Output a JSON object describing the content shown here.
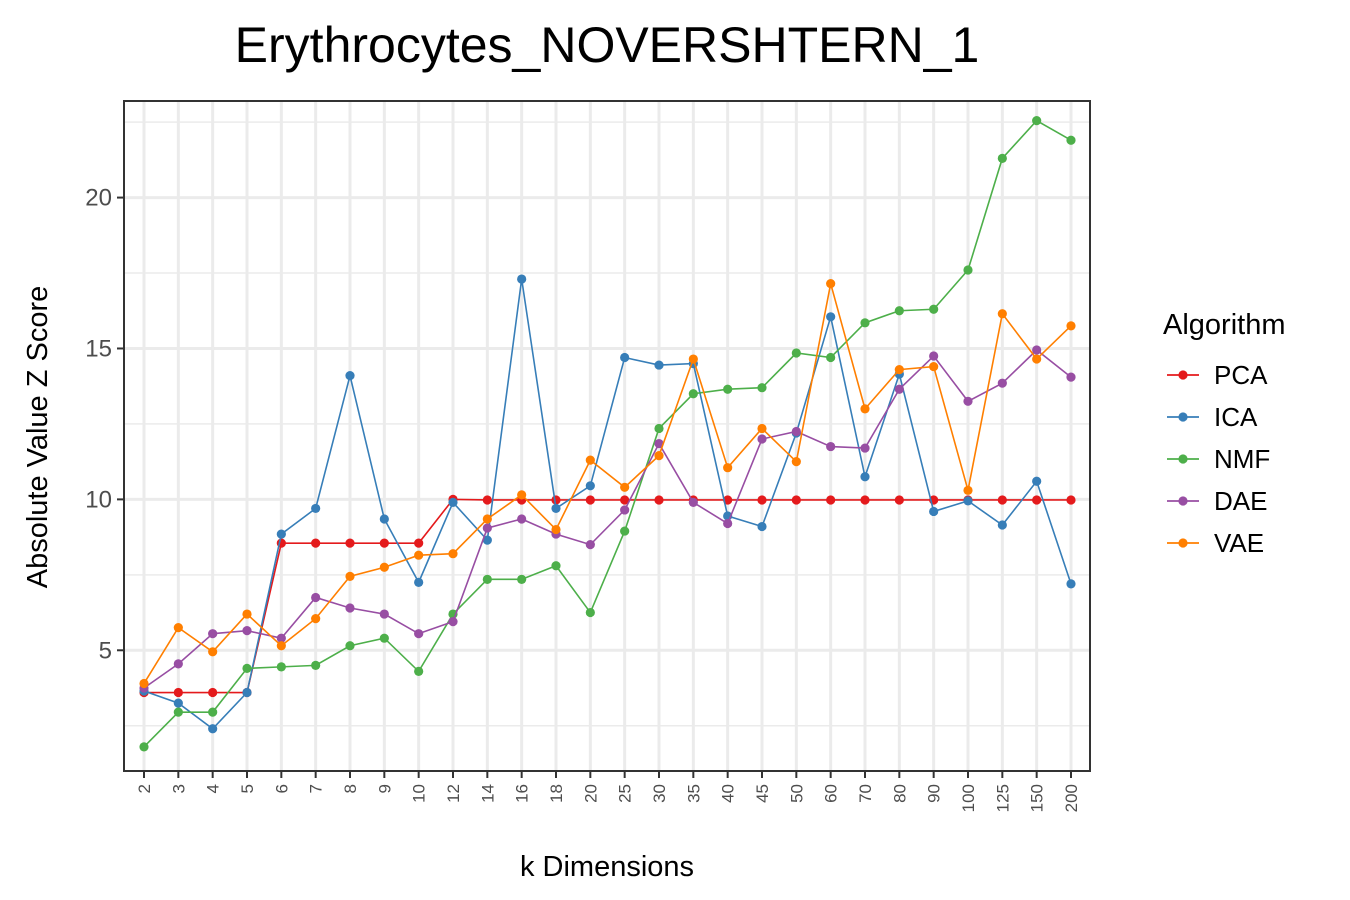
{
  "chart_data": {
    "type": "line",
    "title": "Erythrocytes_NOVERSHTERN_1",
    "xlabel": "k Dimensions",
    "ylabel": "Absolute Value Z Score",
    "categories": [
      "2",
      "3",
      "4",
      "5",
      "6",
      "7",
      "8",
      "9",
      "10",
      "12",
      "14",
      "16",
      "18",
      "20",
      "25",
      "30",
      "35",
      "40",
      "45",
      "50",
      "60",
      "70",
      "80",
      "90",
      "100",
      "125",
      "150",
      "200"
    ],
    "yticks": [
      5,
      10,
      15,
      20
    ],
    "ylim": [
      1.0,
      23.2
    ],
    "grid": true,
    "legend": {
      "title": "Algorithm",
      "placement": "right"
    },
    "series": [
      {
        "name": "PCA",
        "color": "#E41A1C",
        "values": [
          3.6,
          3.6,
          3.6,
          3.6,
          8.55,
          8.55,
          8.55,
          8.55,
          8.55,
          10.0,
          9.98,
          9.98,
          9.98,
          9.98,
          9.98,
          9.98,
          9.98,
          9.98,
          9.98,
          9.98,
          9.98,
          9.98,
          9.98,
          9.98,
          9.98,
          9.98,
          9.98,
          9.98
        ]
      },
      {
        "name": "ICA",
        "color": "#377EB8",
        "values": [
          3.65,
          3.25,
          2.4,
          3.6,
          8.85,
          9.7,
          14.1,
          9.35,
          7.25,
          9.9,
          8.65,
          17.3,
          9.7,
          10.45,
          14.7,
          14.45,
          14.5,
          9.45,
          9.1,
          12.2,
          16.05,
          10.75,
          14.15,
          9.6,
          9.95,
          9.15,
          10.6,
          7.2
        ]
      },
      {
        "name": "NMF",
        "color": "#4DAF4A",
        "values": [
          1.8,
          2.95,
          2.95,
          4.4,
          4.45,
          4.5,
          5.15,
          5.4,
          4.3,
          6.2,
          7.35,
          7.35,
          7.8,
          6.25,
          8.95,
          12.35,
          13.5,
          13.65,
          13.7,
          14.85,
          14.7,
          15.85,
          16.25,
          16.3,
          17.6,
          21.3,
          22.55,
          21.9
        ]
      },
      {
        "name": "DAE",
        "color": "#984EA3",
        "values": [
          3.75,
          4.55,
          5.55,
          5.65,
          5.4,
          6.75,
          6.4,
          6.2,
          5.55,
          5.95,
          9.05,
          9.35,
          8.85,
          8.5,
          9.65,
          11.85,
          9.9,
          9.2,
          12.0,
          12.25,
          11.75,
          11.7,
          13.65,
          14.75,
          13.25,
          13.85,
          14.95,
          14.05
        ]
      },
      {
        "name": "VAE",
        "color": "#FF7F00",
        "values": [
          3.9,
          5.75,
          4.95,
          6.2,
          5.15,
          6.05,
          7.45,
          7.75,
          8.15,
          8.2,
          9.35,
          10.15,
          9.0,
          11.3,
          10.4,
          11.45,
          14.65,
          11.05,
          12.35,
          11.25,
          17.15,
          13.0,
          14.3,
          14.4,
          10.3,
          16.15,
          14.65,
          15.75
        ]
      }
    ]
  }
}
